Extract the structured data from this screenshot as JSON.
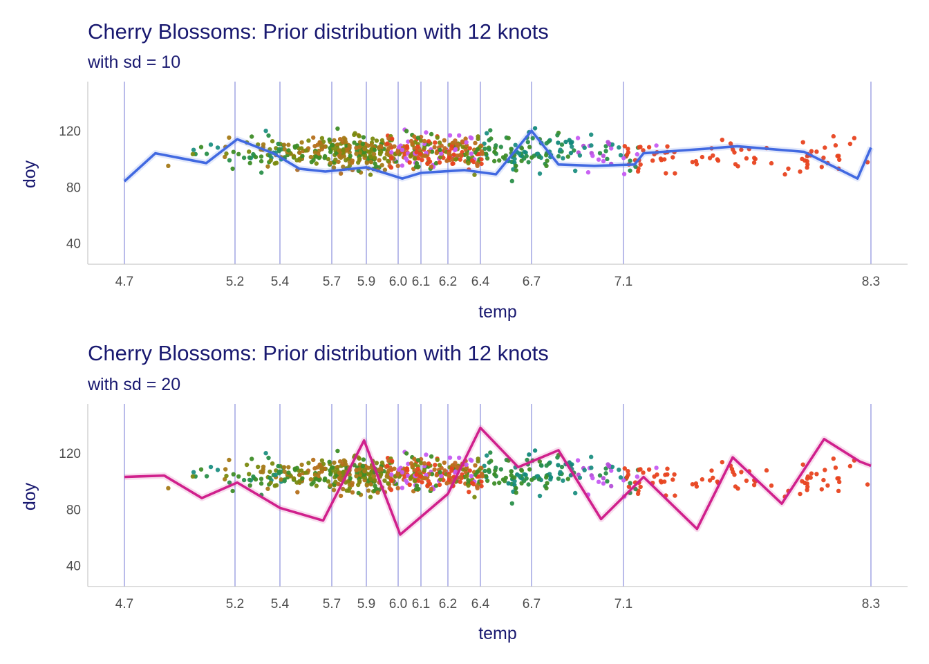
{
  "chart_data": [
    {
      "type": "scatter",
      "title": "Cherry Blossoms: Prior distribution with 12 knots",
      "subtitle": "with sd = 10",
      "xlabel": "temp",
      "ylabel": "doy",
      "xlim": [
        4.6,
        8.4
      ],
      "ylim": [
        25,
        155
      ],
      "x_ticks": [
        4.7,
        5.2,
        5.4,
        5.7,
        5.9,
        6.0,
        6.1,
        6.2,
        6.4,
        6.7,
        7.1,
        8.3
      ],
      "x_tick_labels": [
        "4.7",
        "5.2",
        "5.4",
        "5.7",
        "5.9",
        "6.0",
        "6.1",
        "6.2",
        "6.4",
        "6.7",
        "7.1",
        "8.3"
      ],
      "y_ticks": [
        40,
        80,
        120
      ],
      "y_tick_labels": [
        "40",
        "80",
        "120"
      ],
      "knots": [
        4.69,
        5.19,
        5.39,
        5.63,
        5.78,
        5.92,
        6.03,
        6.15,
        6.29,
        6.52,
        6.93,
        8.04
      ],
      "grid": false,
      "line_color": "#4169e1",
      "series": [
        {
          "type": "line",
          "x": [
            4.69,
            4.83,
            5.06,
            5.2,
            5.36,
            5.48,
            5.6,
            5.78,
            5.94,
            6.03,
            6.22,
            6.36,
            6.52,
            6.64,
            6.8,
            6.98,
            7.02,
            7.28,
            7.44,
            7.74,
            7.98,
            8.04
          ],
          "y": [
            84,
            104,
            97,
            114,
            104,
            93,
            91,
            94,
            86,
            90,
            92,
            89,
            120,
            96,
            95,
            96,
            104,
            107,
            109,
            105,
            86,
            108
          ]
        }
      ]
    },
    {
      "type": "scatter",
      "title": "Cherry Blossoms: Prior distribution with 12 knots",
      "subtitle": "with sd = 20",
      "xlabel": "temp",
      "ylabel": "doy",
      "xlim": [
        4.6,
        8.4
      ],
      "ylim": [
        25,
        155
      ],
      "x_ticks": [
        4.7,
        5.2,
        5.4,
        5.7,
        5.9,
        6.0,
        6.1,
        6.2,
        6.4,
        6.7,
        7.1,
        8.3
      ],
      "x_tick_labels": [
        "4.7",
        "5.2",
        "5.4",
        "5.7",
        "5.9",
        "6.0",
        "6.1",
        "6.2",
        "6.4",
        "6.7",
        "7.1",
        "8.3"
      ],
      "y_ticks": [
        40,
        80,
        120
      ],
      "y_tick_labels": [
        "40",
        "80",
        "120"
      ],
      "knots": [
        4.69,
        5.19,
        5.39,
        5.63,
        5.78,
        5.92,
        6.03,
        6.15,
        6.29,
        6.52,
        6.93,
        8.04
      ],
      "grid": false,
      "line_color": "#d0208c",
      "series": [
        {
          "type": "line",
          "x": [
            4.69,
            4.87,
            5.04,
            5.2,
            5.39,
            5.59,
            5.77,
            5.93,
            6.15,
            6.29,
            6.46,
            6.64,
            6.83,
            7.02,
            7.26,
            7.42,
            7.64,
            7.83,
            7.99,
            8.04
          ],
          "y": [
            103,
            104,
            88,
            99,
            81,
            72,
            129,
            62,
            91,
            138,
            110,
            122,
            73,
            103,
            66,
            117,
            84,
            130,
            114,
            111
          ]
        }
      ]
    }
  ]
}
